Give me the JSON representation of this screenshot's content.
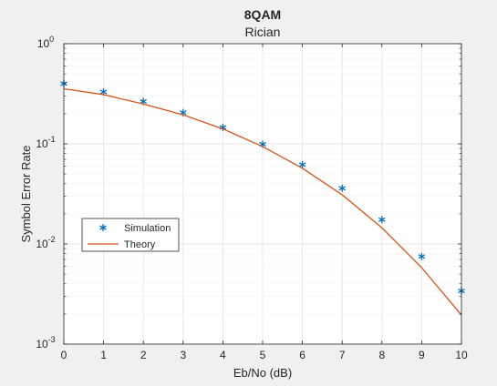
{
  "chart_data": {
    "type": "line",
    "title": "8QAM",
    "subtitle": "Rician",
    "xlabel": "Eb/No (dB)",
    "ylabel": "Symbol Error Rate",
    "xlim": [
      0,
      10
    ],
    "ylim": [
      0.001,
      1
    ],
    "yscale": "log",
    "grid": true,
    "minor_grid": true,
    "legend_position": "lower-left",
    "x_ticks": [
      "0",
      "1",
      "2",
      "3",
      "4",
      "5",
      "6",
      "7",
      "8",
      "9",
      "10"
    ],
    "y_ticks": [
      {
        "base": "10",
        "exp": "-3",
        "value": 0.001
      },
      {
        "base": "10",
        "exp": "-2",
        "value": 0.01
      },
      {
        "base": "10",
        "exp": "-1",
        "value": 0.1
      },
      {
        "base": "10",
        "exp": "0",
        "value": 1
      }
    ],
    "x": [
      0,
      1,
      2,
      3,
      4,
      5,
      6,
      7,
      8,
      9,
      10
    ],
    "series": [
      {
        "name": "Simulation",
        "style": "marker",
        "marker": "asterisk",
        "color": "#0072bd",
        "values": [
          0.4,
          0.33,
          0.265,
          0.205,
          0.146,
          0.099,
          0.062,
          0.036,
          0.0175,
          0.0075,
          0.0034
        ]
      },
      {
        "name": "Theory",
        "style": "line",
        "color": "#d95319",
        "values": [
          0.355,
          0.31,
          0.25,
          0.195,
          0.141,
          0.094,
          0.057,
          0.031,
          0.0145,
          0.0058,
          0.00195
        ]
      }
    ]
  }
}
